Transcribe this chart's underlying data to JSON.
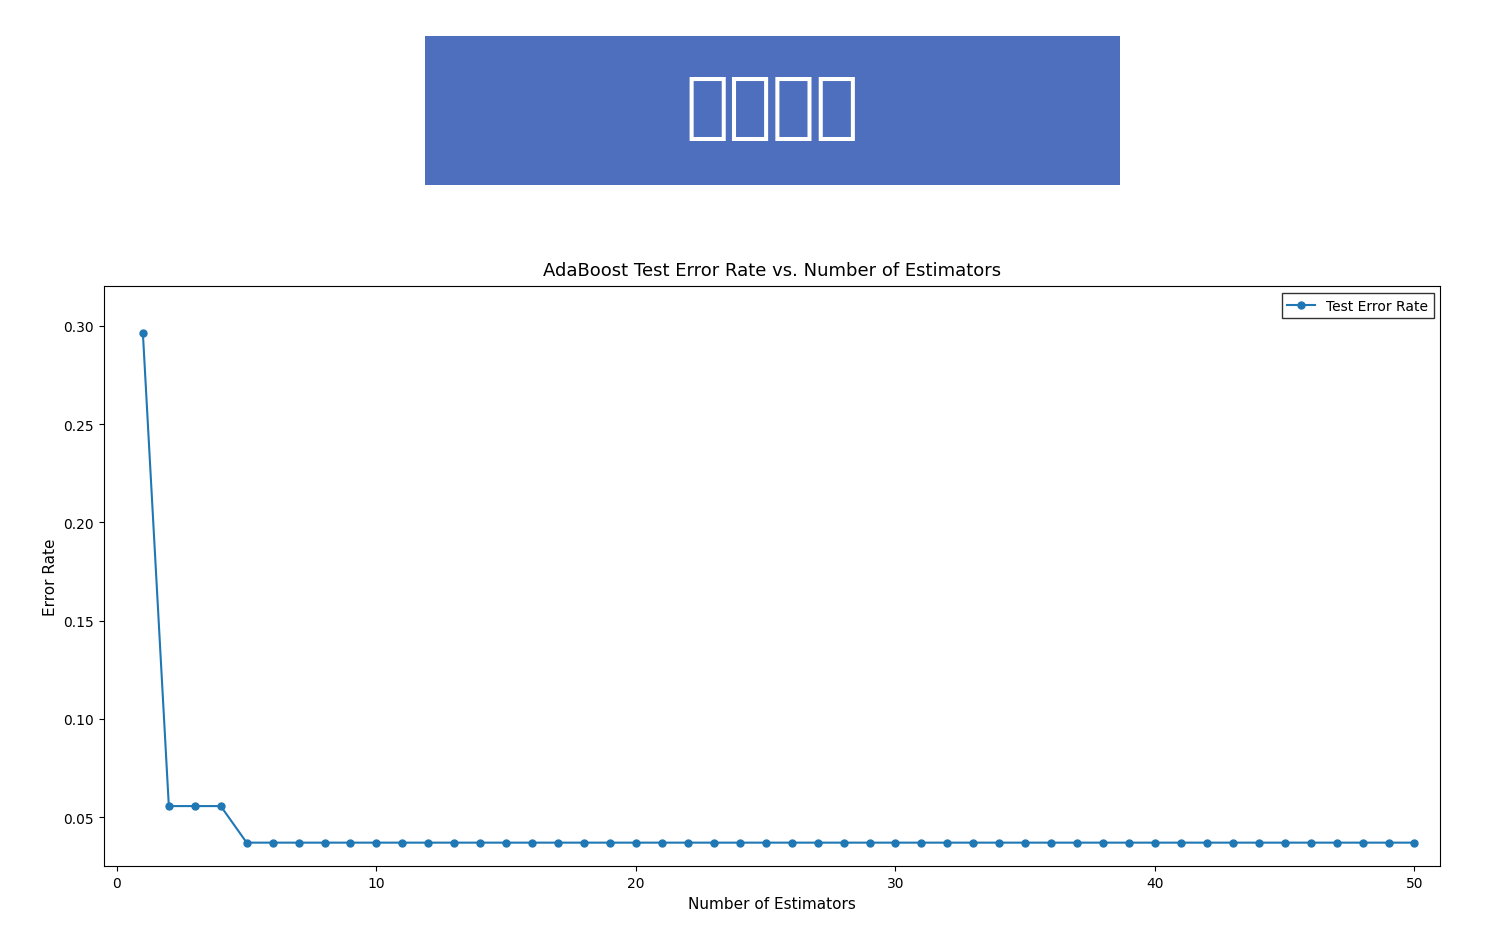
{
  "title": "AdaBoost Test Error Rate vs. Number of Estimators",
  "xlabel": "Number of Estimators",
  "ylabel": "Error Rate",
  "header_text": "学习曲线",
  "header_bg_color": "#4d6fbd",
  "header_text_color": "#ffffff",
  "line_color": "#1f77b4",
  "marker": "o",
  "marker_size": 5,
  "line_width": 1.5,
  "legend_label": "Test Error Rate",
  "xlim": [
    -0.5,
    51
  ],
  "ylim": [
    0.025,
    0.32
  ],
  "x_ticks": [
    0,
    10,
    20,
    30,
    40,
    50
  ],
  "y_ticks": [
    0.05,
    0.1,
    0.15,
    0.2,
    0.25,
    0.3
  ],
  "x_values": [
    1,
    2,
    3,
    4,
    5,
    6,
    7,
    8,
    9,
    10,
    11,
    12,
    13,
    14,
    15,
    16,
    17,
    18,
    19,
    20,
    21,
    22,
    23,
    24,
    25,
    26,
    27,
    28,
    29,
    30,
    31,
    32,
    33,
    34,
    35,
    36,
    37,
    38,
    39,
    40,
    41,
    42,
    43,
    44,
    45,
    46,
    47,
    48,
    49,
    50
  ],
  "y_values": [
    0.2963,
    0.0556,
    0.0556,
    0.0556,
    0.037,
    0.037,
    0.037,
    0.037,
    0.037,
    0.037,
    0.037,
    0.037,
    0.037,
    0.037,
    0.037,
    0.037,
    0.037,
    0.037,
    0.037,
    0.037,
    0.037,
    0.037,
    0.037,
    0.037,
    0.037,
    0.037,
    0.037,
    0.037,
    0.037,
    0.037,
    0.037,
    0.037,
    0.037,
    0.037,
    0.037,
    0.037,
    0.037,
    0.037,
    0.037,
    0.037,
    0.037,
    0.037,
    0.037,
    0.037,
    0.037,
    0.037,
    0.037,
    0.037,
    0.037,
    0.037
  ],
  "background_color": "#ffffff",
  "title_fontsize": 13,
  "axis_label_fontsize": 11,
  "tick_fontsize": 10,
  "header_fontsize": 52,
  "legend_fontsize": 10
}
